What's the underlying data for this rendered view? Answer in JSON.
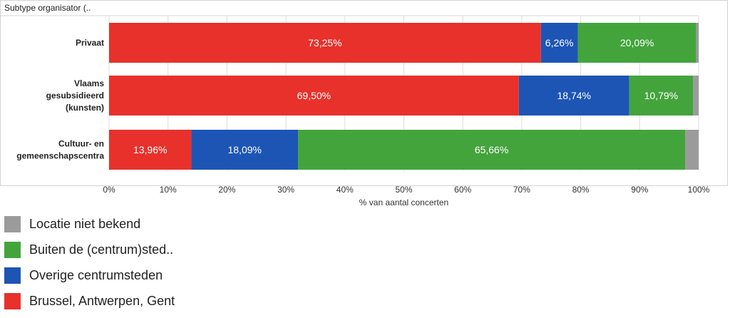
{
  "chart_data": {
    "type": "bar",
    "orientation": "horizontal",
    "stacked": true,
    "title": "Subtype organisator (..",
    "xlabel": "% van aantal concerten",
    "ylabel": "",
    "xlim": [
      0,
      100
    ],
    "x_ticks": [
      "0%",
      "10%",
      "20%",
      "30%",
      "40%",
      "50%",
      "60%",
      "70%",
      "80%",
      "90%",
      "100%"
    ],
    "grid": true,
    "legend_position": "bottom-left",
    "categories": [
      [
        "Privaat"
      ],
      [
        "Vlaams",
        "gesubsidieerd",
        "(kunsten)"
      ],
      [
        "Cultuur- en",
        "gemeenschapscentra"
      ]
    ],
    "series": [
      {
        "name": "Brussel, Antwerpen, Gent",
        "color": "#e8312b",
        "values": [
          73.25,
          69.5,
          13.96
        ],
        "labels": [
          "73,25%",
          "69,50%",
          "13,96%"
        ]
      },
      {
        "name": "Overige centrumsteden",
        "color": "#1d55b5",
        "values": [
          6.26,
          18.74,
          18.09
        ],
        "labels": [
          "6,26%",
          "18,74%",
          "18,09%"
        ]
      },
      {
        "name": "Buiten de (centrum)sted..",
        "color": "#43a43c",
        "values": [
          20.09,
          10.79,
          65.66
        ],
        "labels": [
          "20,09%",
          "10,79%",
          "65,66%"
        ]
      },
      {
        "name": "Locatie niet bekend",
        "color": "#9b9b9b",
        "values": [
          0.4,
          0.97,
          2.29
        ],
        "labels": [
          "",
          "",
          ""
        ]
      }
    ],
    "legend_order": [
      3,
      2,
      1,
      0
    ]
  }
}
